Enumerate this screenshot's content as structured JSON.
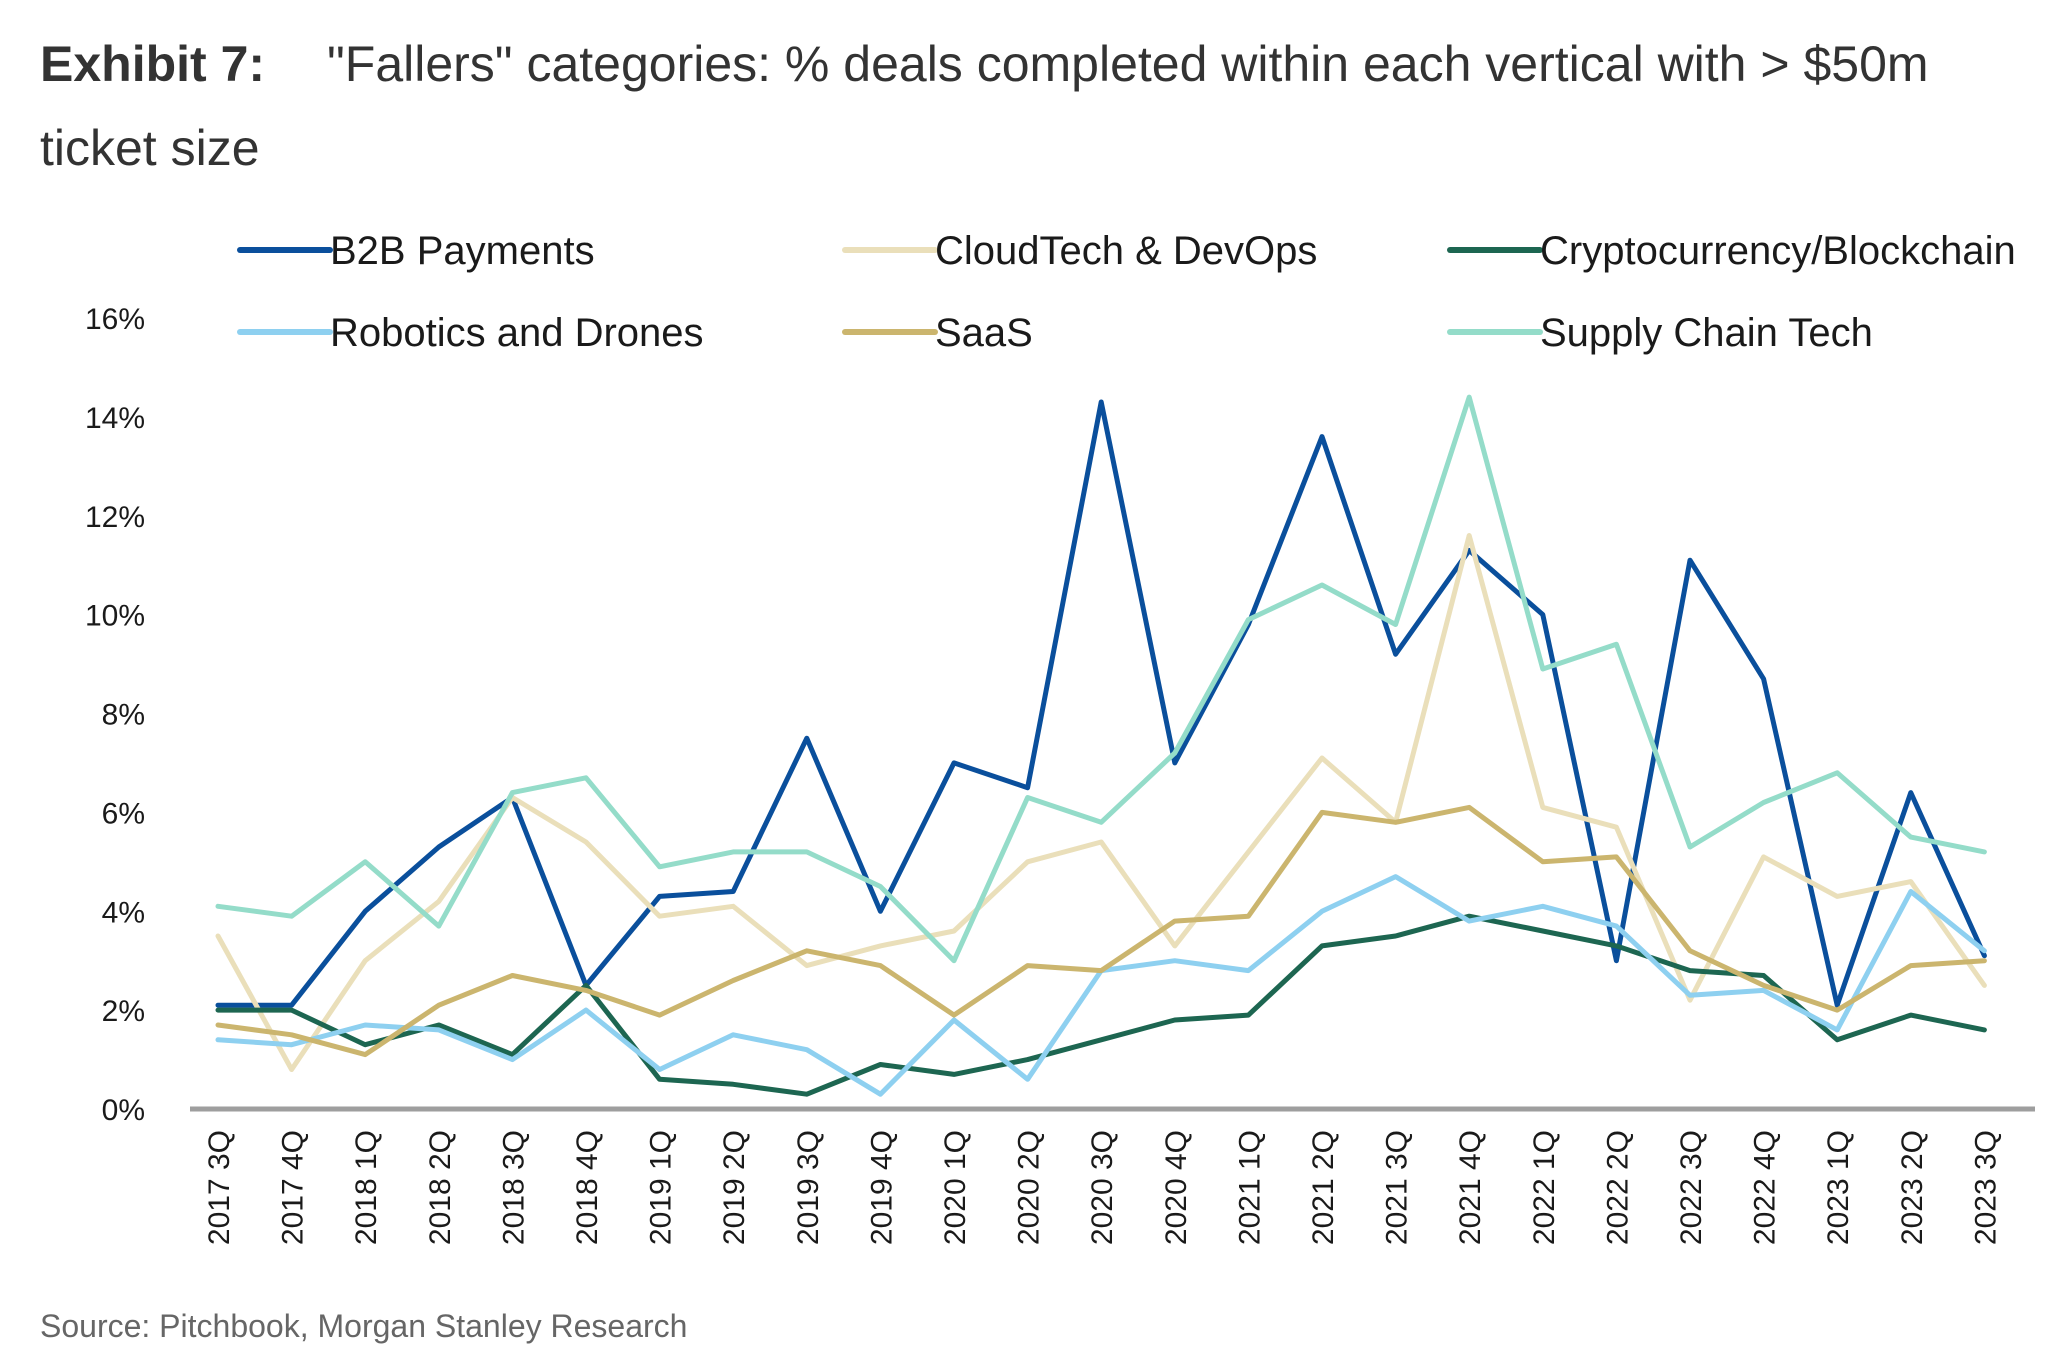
{
  "title": {
    "exhibit": "Exhibit 7:",
    "text": "\"Fallers\" categories: % deals completed within each vertical with > $50m ticket size"
  },
  "source": "Source: Pitchbook, Morgan Stanley Research",
  "chart_data": {
    "type": "line",
    "title": "\"Fallers\" categories: % deals completed within each vertical with > $50m ticket size",
    "xlabel": "",
    "ylabel": "",
    "ylim": [
      0,
      16
    ],
    "y_ticks": [
      "0%",
      "2%",
      "4%",
      "6%",
      "8%",
      "10%",
      "12%",
      "14%",
      "16%"
    ],
    "grid": false,
    "legend_position": "top",
    "categories": [
      "2017 3Q",
      "2017 4Q",
      "2018 1Q",
      "2018 2Q",
      "2018 3Q",
      "2018 4Q",
      "2019 1Q",
      "2019 2Q",
      "2019 3Q",
      "2019 4Q",
      "2020 1Q",
      "2020 2Q",
      "2020 3Q",
      "2020 4Q",
      "2021 1Q",
      "2021 2Q",
      "2021 3Q",
      "2021 4Q",
      "2022 1Q",
      "2022 2Q",
      "2022 3Q",
      "2022 4Q",
      "2023 1Q",
      "2023 2Q",
      "2023 3Q"
    ],
    "series": [
      {
        "name": "B2B Payments",
        "color": "#0a4f9c",
        "values": [
          2.1,
          2.1,
          4.0,
          5.3,
          6.3,
          2.5,
          4.3,
          4.4,
          7.5,
          4.0,
          7.0,
          6.5,
          14.3,
          7.0,
          9.8,
          13.6,
          9.2,
          11.3,
          10.0,
          3.0,
          11.1,
          8.7,
          2.1,
          6.4,
          3.1
        ]
      },
      {
        "name": "CloudTech & DevOps",
        "color": "#eadfba",
        "values": [
          3.5,
          0.8,
          3.0,
          4.2,
          6.3,
          5.4,
          3.9,
          4.1,
          2.9,
          3.3,
          3.6,
          5.0,
          5.4,
          3.3,
          5.2,
          7.1,
          5.8,
          11.6,
          6.1,
          5.7,
          2.2,
          5.1,
          4.3,
          4.6,
          2.5
        ]
      },
      {
        "name": "Cryptocurrency/Blockchain",
        "color": "#1d6651",
        "values": [
          2.0,
          2.0,
          1.3,
          1.7,
          1.1,
          2.5,
          0.6,
          0.5,
          0.3,
          0.9,
          0.7,
          1.0,
          1.4,
          1.8,
          1.9,
          3.3,
          3.5,
          3.9,
          3.6,
          3.3,
          2.8,
          2.7,
          1.4,
          1.9,
          1.6
        ]
      },
      {
        "name": "Robotics and Drones",
        "color": "#8ed0f0",
        "values": [
          1.4,
          1.3,
          1.7,
          1.6,
          1.0,
          2.0,
          0.8,
          1.5,
          1.2,
          0.3,
          1.8,
          0.6,
          2.8,
          3.0,
          2.8,
          4.0,
          4.7,
          3.8,
          4.1,
          3.7,
          2.3,
          2.4,
          1.6,
          4.4,
          3.2
        ]
      },
      {
        "name": "SaaS",
        "color": "#cbb56e",
        "values": [
          1.7,
          1.5,
          1.1,
          2.1,
          2.7,
          2.4,
          1.9,
          2.6,
          3.2,
          2.9,
          1.9,
          2.9,
          2.8,
          3.8,
          3.9,
          6.0,
          5.8,
          6.1,
          5.0,
          5.1,
          3.2,
          2.5,
          2.0,
          2.9,
          3.0
        ]
      },
      {
        "name": "Supply Chain Tech",
        "color": "#94dcc9",
        "values": [
          4.1,
          3.9,
          5.0,
          3.7,
          6.4,
          6.7,
          4.9,
          5.2,
          5.2,
          4.5,
          3.0,
          6.3,
          5.8,
          7.2,
          9.9,
          10.6,
          9.8,
          14.4,
          8.9,
          9.4,
          5.3,
          6.2,
          6.8,
          5.5,
          5.2
        ]
      }
    ]
  }
}
